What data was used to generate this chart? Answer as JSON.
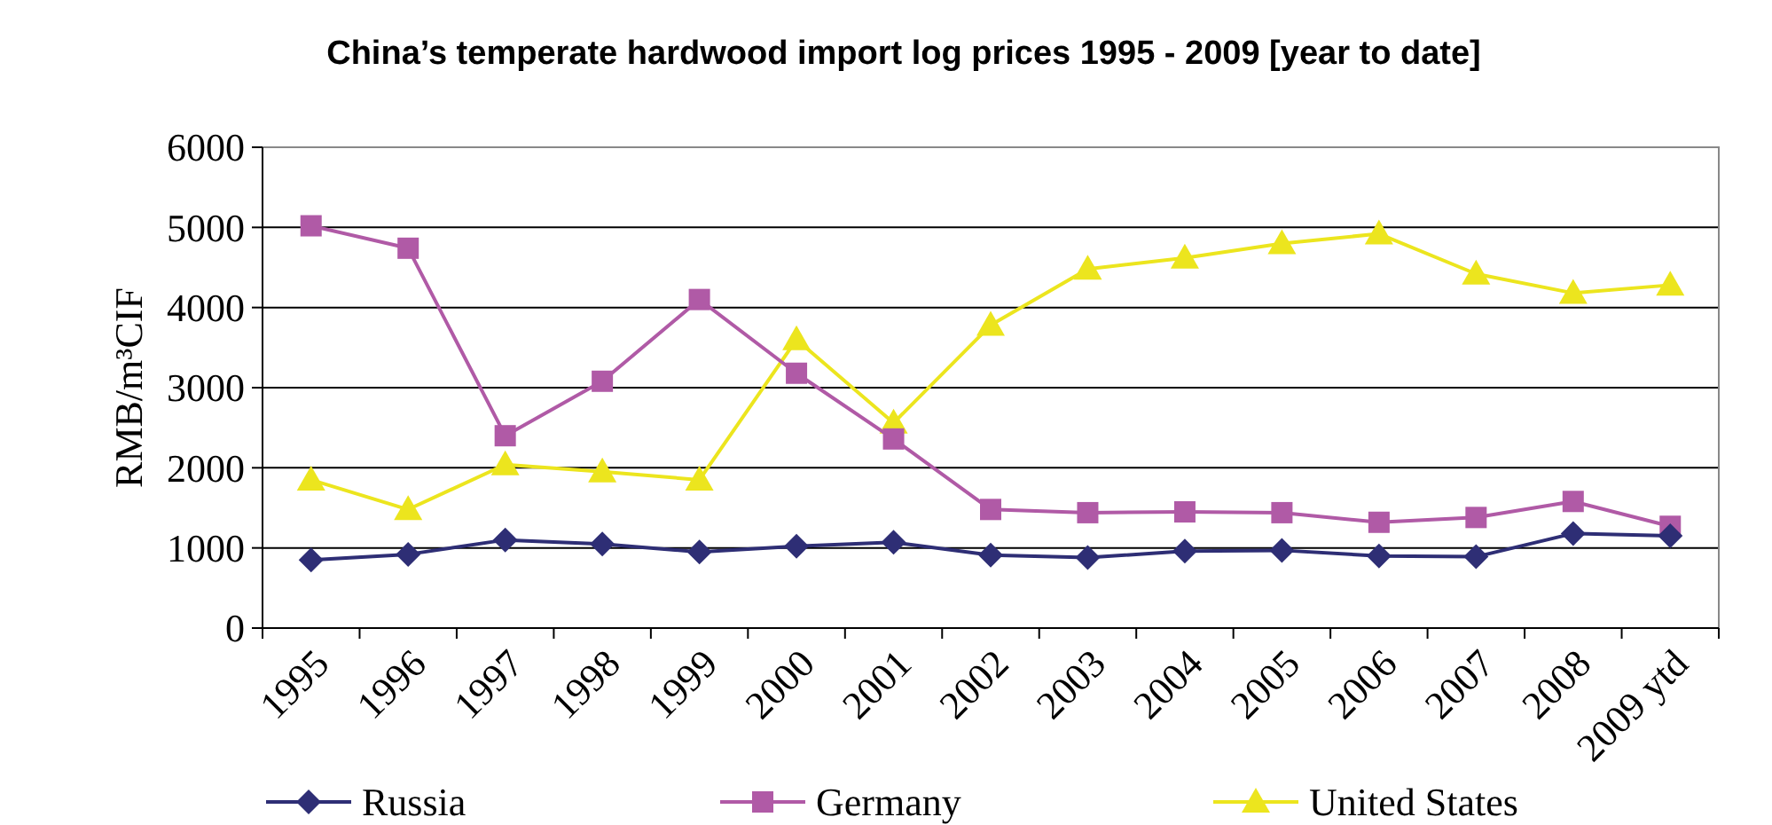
{
  "chart_data": {
    "type": "line",
    "title": "China’s temperate hardwood import log prices 1995 - 2009 [year to date]",
    "ylabel": "RMB/m³CIF",
    "categories": [
      "1995",
      "1996",
      "1997",
      "1998",
      "1999",
      "2000",
      "2001",
      "2002",
      "2003",
      "2004",
      "2005",
      "2006",
      "2007",
      "2008",
      "2009 ytd"
    ],
    "series": [
      {
        "name": "Russia",
        "color": "#2e2e75",
        "marker": "diamond",
        "values": [
          850,
          920,
          1100,
          1050,
          950,
          1020,
          1070,
          910,
          880,
          960,
          970,
          900,
          890,
          1180,
          1150
        ]
      },
      {
        "name": "Germany",
        "color": "#b05aa6",
        "marker": "square",
        "values": [
          5020,
          4740,
          2400,
          3080,
          4100,
          3180,
          2360,
          1480,
          1440,
          1450,
          1440,
          1320,
          1380,
          1580,
          1270
        ]
      },
      {
        "name": "United States",
        "color": "#ece51e",
        "marker": "triangle",
        "values": [
          1850,
          1480,
          2040,
          1950,
          1850,
          3600,
          2560,
          3780,
          4480,
          4620,
          4800,
          4920,
          4420,
          4180,
          4280
        ]
      }
    ],
    "ylim": [
      0,
      6000
    ],
    "yticks": [
      0,
      1000,
      2000,
      3000,
      4000,
      5000,
      6000
    ],
    "grid": "y",
    "legend": "bottom"
  }
}
